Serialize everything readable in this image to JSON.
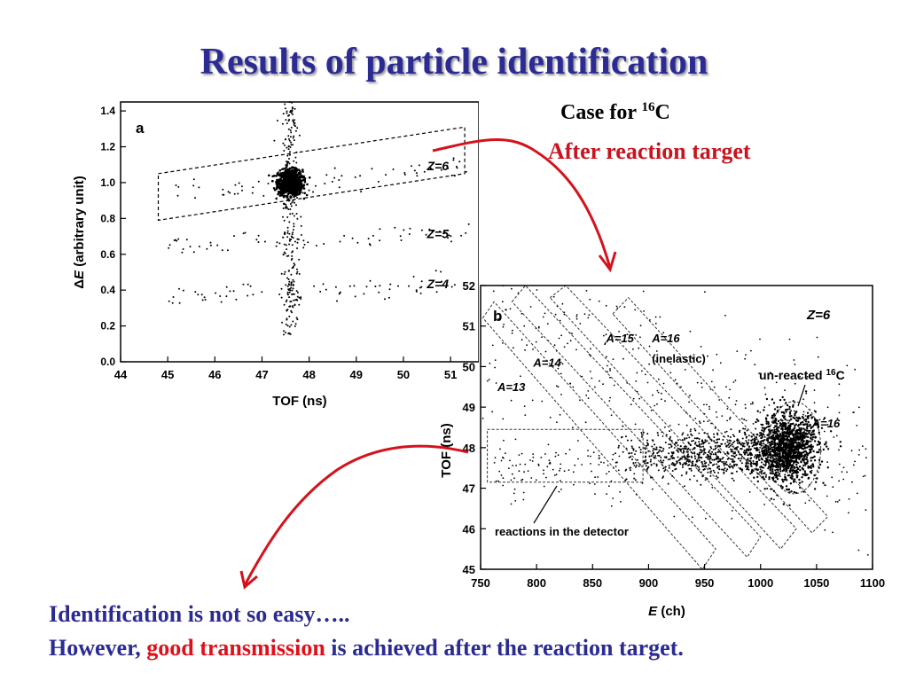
{
  "slide": {
    "title": "Results of particle identification",
    "case_prefix": "Case for ",
    "case_mass": "16",
    "case_element": "C",
    "after_target": "After reaction target",
    "conclusion_line1": "Identification is not so easy…..",
    "conclusion_line2_pre": "However, ",
    "conclusion_line2_highlight": "good transmission",
    "conclusion_line2_post": " is achieved after the reaction target."
  },
  "chart_data": [
    {
      "type": "scatter",
      "panel_label": "a",
      "xlabel": "TOF (ns)",
      "ylabel_delta": "Δ",
      "ylabel_var": "E",
      "ylabel_rest": " (arbitrary unit)",
      "xlim": [
        44,
        51.6
      ],
      "ylim": [
        0,
        1.45
      ],
      "x_ticks": [
        "44",
        "45",
        "46",
        "47",
        "48",
        "49",
        "50",
        "51"
      ],
      "y_ticks": [
        "0.0",
        "0.2",
        "0.4",
        "0.6",
        "0.8",
        "1.0",
        "1.2",
        "1.4"
      ],
      "bands": [
        {
          "label": "Z=6",
          "label_x": 50.5,
          "label_y": 1.07,
          "dE": 1.0
        },
        {
          "label": "Z=5",
          "label_x": 50.5,
          "label_y": 0.69,
          "dE": 0.67
        },
        {
          "label": "Z=4",
          "label_x": 50.5,
          "label_y": 0.41,
          "dE": 0.4
        }
      ],
      "main_cluster": {
        "x": 47.6,
        "y": 1.0
      },
      "selection_gate": {
        "label": "Z=6 gate",
        "x_range": [
          45.0,
          51.0
        ],
        "y_center": [
          0.92,
          1.16
        ],
        "half_width": 0.1
      }
    },
    {
      "type": "scatter",
      "panel_label": "b",
      "xlabel_var": "E",
      "xlabel_rest": " (ch)",
      "ylabel": "TOF (ns)",
      "xlim": [
        750,
        1100
      ],
      "ylim": [
        45,
        52
      ],
      "x_ticks": [
        "750",
        "800",
        "850",
        "900",
        "950",
        "1000",
        "1050",
        "1100"
      ],
      "y_ticks": [
        "45",
        "46",
        "47",
        "48",
        "49",
        "50",
        "51",
        "52"
      ],
      "z_label": "Z=6",
      "annotations": [
        {
          "text": "A=13",
          "x": 765,
          "y": 49.4
        },
        {
          "text": "A=14",
          "x": 797,
          "y": 50.0
        },
        {
          "text": "A=15",
          "x": 862,
          "y": 50.6
        },
        {
          "text": "A=16",
          "x": 903,
          "y": 50.6
        },
        {
          "text": "(inelastic)",
          "x": 903,
          "y": 50.1
        },
        {
          "text": "A=16",
          "x": 1046,
          "y": 48.5
        }
      ],
      "unreacted_label_pre": "un-reacted ",
      "unreacted_label_mass": "16",
      "unreacted_label_el": "C",
      "detector_label": "reactions in the detector",
      "main_cluster": {
        "x": 1025,
        "y": 48.0
      }
    }
  ]
}
